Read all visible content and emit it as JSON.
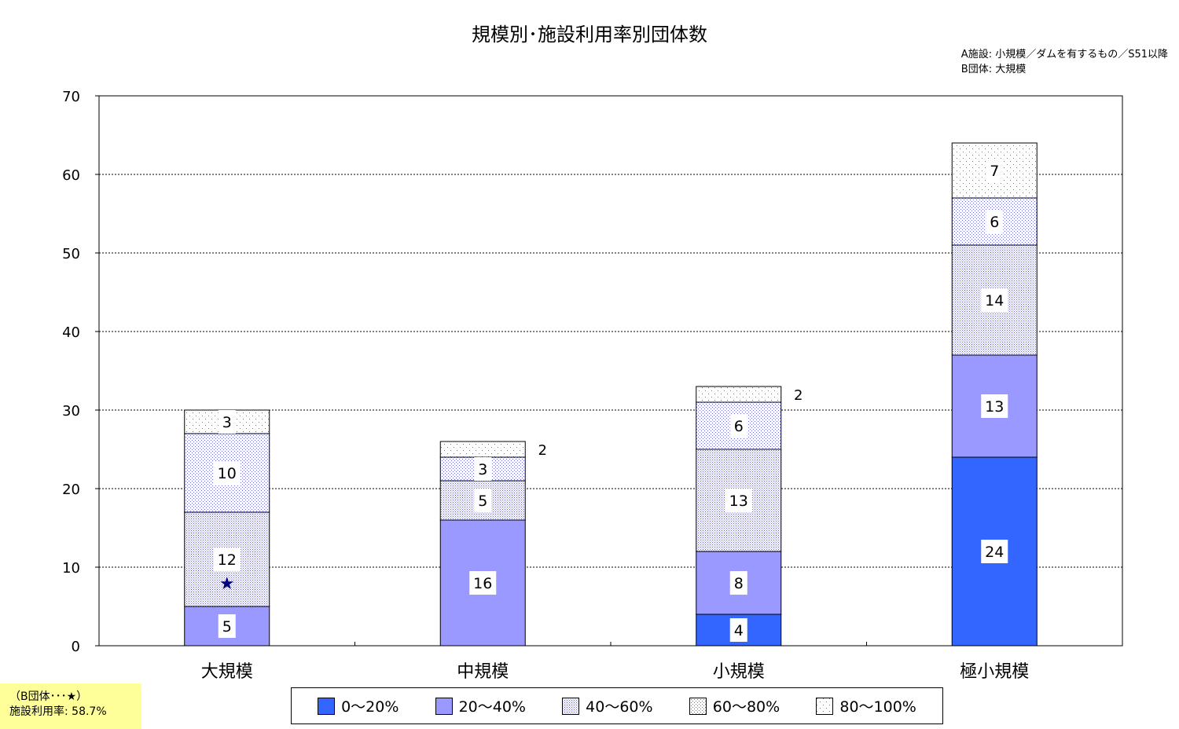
{
  "chart_data": {
    "type": "bar",
    "stacked": true,
    "title": "規模別･施設利用率別団体数",
    "note_lines": [
      "A施設: 小規模／ダムを有するもの／S51以降",
      "B団体: 大規模"
    ],
    "categories": [
      "大規模",
      "中規模",
      "小規模",
      "極小規模"
    ],
    "ylim": [
      0,
      70
    ],
    "yticks": [
      0,
      10,
      20,
      30,
      40,
      50,
      60,
      70
    ],
    "grid": true,
    "legend_position": "bottom",
    "series": [
      {
        "name": "0〜20%",
        "values": [
          0,
          0,
          4,
          24
        ],
        "color": "#3366ff",
        "pattern": "solid"
      },
      {
        "name": "20〜40%",
        "values": [
          5,
          16,
          8,
          13
        ],
        "color": "#9999ff",
        "pattern": "solid"
      },
      {
        "name": "40〜60%",
        "values": [
          12,
          5,
          13,
          14
        ],
        "color": "#9999ff",
        "pattern": "dense-dots"
      },
      {
        "name": "60〜80%",
        "values": [
          10,
          3,
          6,
          6
        ],
        "color": "#9999ff",
        "pattern": "medium-dots"
      },
      {
        "name": "80〜100%",
        "values": [
          3,
          2,
          2,
          7
        ],
        "color": "#9999ff",
        "pattern": "sparse-dots"
      }
    ],
    "marker": {
      "category": "大規模",
      "symbol": "★",
      "value": 8,
      "color": "#000080"
    }
  },
  "footnote": {
    "line1": "（B団体･･･★）",
    "line2": "施設利用率: 58.7%"
  }
}
